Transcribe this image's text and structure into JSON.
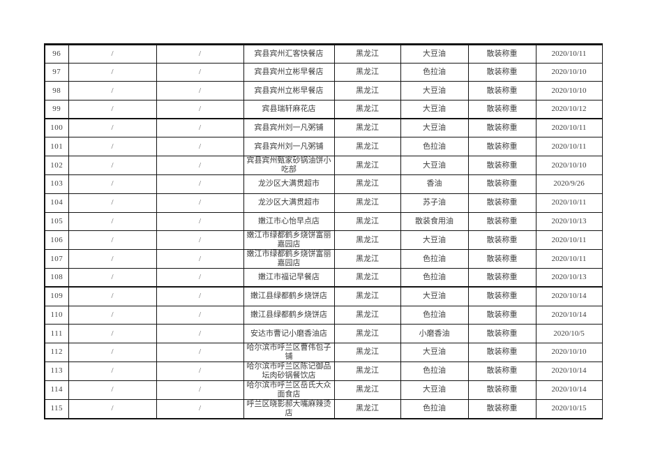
{
  "colors": {
    "border": "#111111",
    "text": "#3d3d3d",
    "slash": "#5c5c5c",
    "page_background": "#ffffff"
  },
  "table": {
    "description_fields": [
      "seq",
      "slash1",
      "slash2",
      "store",
      "province",
      "oil",
      "method",
      "date"
    ],
    "rows": [
      {
        "seq": "96",
        "slash1": "/",
        "slash2": "/",
        "store": "宾县宾州汇客快餐店",
        "province": "黑龙江",
        "oil": "大豆油",
        "method": "散装称重",
        "date": "2020/10/11",
        "group_end": false
      },
      {
        "seq": "97",
        "slash1": "/",
        "slash2": "/",
        "store": "宾县宾州立彬早餐店",
        "province": "黑龙江",
        "oil": "色拉油",
        "method": "散装称重",
        "date": "2020/10/10",
        "group_end": false
      },
      {
        "seq": "98",
        "slash1": "/",
        "slash2": "/",
        "store": "宾县宾州立彬早餐店",
        "province": "黑龙江",
        "oil": "大豆油",
        "method": "散装称重",
        "date": "2020/10/10",
        "group_end": false
      },
      {
        "seq": "99",
        "slash1": "/",
        "slash2": "/",
        "store": "宾县瑞轩麻花店",
        "province": "黑龙江",
        "oil": "大豆油",
        "method": "散装称重",
        "date": "2020/10/12",
        "group_end": true
      },
      {
        "seq": "100",
        "slash1": "/",
        "slash2": "/",
        "store": "宾县宾州刘一凡粥铺",
        "province": "黑龙江",
        "oil": "大豆油",
        "method": "散装称重",
        "date": "2020/10/11",
        "group_end": false
      },
      {
        "seq": "101",
        "slash1": "/",
        "slash2": "/",
        "store": "宾县宾州刘一凡粥铺",
        "province": "黑龙江",
        "oil": "色拉油",
        "method": "散装称重",
        "date": "2020/10/11",
        "group_end": false
      },
      {
        "seq": "102",
        "slash1": "/",
        "slash2": "/",
        "store": "宾县宾州甄家砂锅油饼小吃部",
        "province": "黑龙江",
        "oil": "大豆油",
        "method": "散装称重",
        "date": "2020/10/10",
        "group_end": false
      },
      {
        "seq": "103",
        "slash1": "/",
        "slash2": "/",
        "store": "龙沙区大满贯超市",
        "province": "黑龙江",
        "oil": "香油",
        "method": "散装称重",
        "date": "2020/9/26",
        "group_end": false
      },
      {
        "seq": "104",
        "slash1": "/",
        "slash2": "/",
        "store": "龙沙区大满贯超市",
        "province": "黑龙江",
        "oil": "苏子油",
        "method": "散装称重",
        "date": "2020/10/11",
        "group_end": false
      },
      {
        "seq": "105",
        "slash1": "/",
        "slash2": "/",
        "store": "嫩江市心怡早点店",
        "province": "黑龙江",
        "oil": "散装食用油",
        "method": "散装称重",
        "date": "2020/10/13",
        "group_end": false
      },
      {
        "seq": "106",
        "slash1": "/",
        "slash2": "/",
        "store": "嫩江市绿都鹤乡烧饼富丽嘉园店",
        "province": "黑龙江",
        "oil": "大豆油",
        "method": "散装称重",
        "date": "2020/10/11",
        "group_end": false
      },
      {
        "seq": "107",
        "slash1": "/",
        "slash2": "/",
        "store": "嫩江市绿都鹤乡烧饼富丽嘉园店",
        "province": "黑龙江",
        "oil": "色拉油",
        "method": "散装称重",
        "date": "2020/10/11",
        "group_end": false
      },
      {
        "seq": "108",
        "slash1": "/",
        "slash2": "/",
        "store": "嫩江市福记早餐店",
        "province": "黑龙江",
        "oil": "色拉油",
        "method": "散装称重",
        "date": "2020/10/13",
        "group_end": true
      },
      {
        "seq": "109",
        "slash1": "/",
        "slash2": "/",
        "store": "嫩江县绿都鹤乡烧饼店",
        "province": "黑龙江",
        "oil": "大豆油",
        "method": "散装称重",
        "date": "2020/10/14",
        "group_end": false
      },
      {
        "seq": "110",
        "slash1": "/",
        "slash2": "/",
        "store": "嫩江县绿都鹤乡烧饼店",
        "province": "黑龙江",
        "oil": "色拉油",
        "method": "散装称重",
        "date": "2020/10/14",
        "group_end": false
      },
      {
        "seq": "111",
        "slash1": "/",
        "slash2": "/",
        "store": "安达市曹记小磨香油店",
        "province": "黑龙江",
        "oil": "小磨香油",
        "method": "散装称重",
        "date": "2020/10/5",
        "group_end": false
      },
      {
        "seq": "112",
        "slash1": "/",
        "slash2": "/",
        "store": "哈尔滨市呼兰区曹伟包子铺",
        "province": "黑龙江",
        "oil": "大豆油",
        "method": "散装称重",
        "date": "2020/10/10",
        "group_end": false
      },
      {
        "seq": "113",
        "slash1": "/",
        "slash2": "/",
        "store": "哈尔滨市呼兰区陈记御品坛肉砂锅餐饮店",
        "province": "黑龙江",
        "oil": "色拉油",
        "method": "散装称重",
        "date": "2020/10/14",
        "group_end": false
      },
      {
        "seq": "114",
        "slash1": "/",
        "slash2": "/",
        "store": "哈尔滨市呼兰区岳氏大众面食店",
        "province": "黑龙江",
        "oil": "大豆油",
        "method": "散装称重",
        "date": "2020/10/14",
        "group_end": false
      },
      {
        "seq": "115",
        "slash1": "/",
        "slash2": "/",
        "store": "呼兰区晓影郝大嘴麻辣烫店",
        "province": "黑龙江",
        "oil": "色拉油",
        "method": "散装称重",
        "date": "2020/10/15",
        "group_end": false
      }
    ]
  }
}
